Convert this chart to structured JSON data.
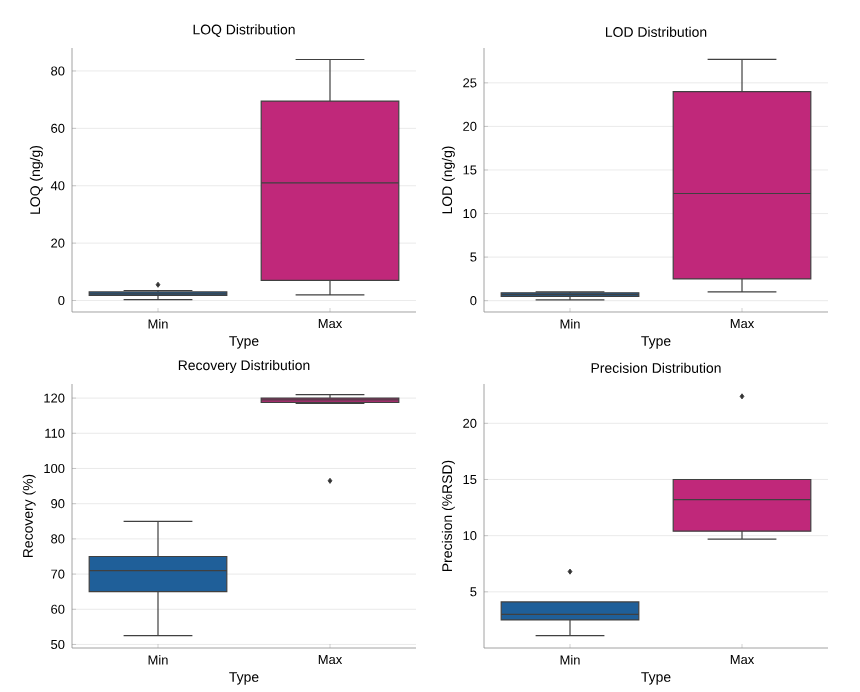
{
  "chart_data": [
    {
      "type": "box",
      "title": "LOQ Distribution",
      "xlabel": "Type",
      "ylabel": "LOQ (ng/g)",
      "categories": [
        "Min",
        "Max"
      ],
      "colors": [
        "#1f5f99",
        "#c0287a"
      ],
      "grid": "y",
      "ylim": [
        -4,
        88
      ],
      "yticks": [
        0,
        20,
        40,
        60,
        80
      ],
      "boxes": [
        {
          "low": 0.3,
          "q1": 1.8,
          "median": 2.3,
          "q3": 3,
          "high": 3.5,
          "outliers": [
            5.5
          ]
        },
        {
          "low": 2,
          "q1": 7,
          "median": 41,
          "q3": 69.5,
          "high": 84
        }
      ]
    },
    {
      "type": "box",
      "title": "LOD Distribution",
      "xlabel": "Type",
      "ylabel": "LOD (ng/g)",
      "categories": [
        "Min",
        "Max"
      ],
      "colors": [
        "#1f5f99",
        "#c0287a"
      ],
      "grid": "y",
      "ylim": [
        -1.3,
        29
      ],
      "yticks": [
        0,
        5,
        10,
        15,
        20,
        25
      ],
      "boxes": [
        {
          "low": 0.1,
          "q1": 0.5,
          "median": 0.7,
          "q3": 0.9,
          "high": 1.0
        },
        {
          "low": 1,
          "q1": 2.5,
          "median": 12.3,
          "q3": 24,
          "high": 27.7
        }
      ]
    },
    {
      "type": "box",
      "title": "Recovery Distribution",
      "xlabel": "Type",
      "ylabel": "Recovery (%)",
      "categories": [
        "Min",
        "Max"
      ],
      "colors": [
        "#1f5f99",
        "#c0287a"
      ],
      "grid": "y",
      "ylim": [
        49,
        124
      ],
      "yticks": [
        50,
        60,
        70,
        80,
        90,
        100,
        110,
        120
      ],
      "boxes": [
        {
          "low": 52.5,
          "q1": 65,
          "median": 71,
          "q3": 75,
          "high": 85
        },
        {
          "low": 118.5,
          "q1": 118.8,
          "median": 119.5,
          "q3": 120,
          "high": 121,
          "outliers": [
            96.5
          ]
        }
      ]
    },
    {
      "type": "box",
      "title": "Precision Distribution",
      "xlabel": "Type",
      "ylabel": "Precision (%RSD)",
      "categories": [
        "Min",
        "Max"
      ],
      "colors": [
        "#1f5f99",
        "#c0287a"
      ],
      "grid": "y",
      "ylim": [
        0,
        23.5
      ],
      "yticks": [
        5,
        10,
        15,
        20
      ],
      "boxes": [
        {
          "low": 1.1,
          "q1": 2.5,
          "median": 3,
          "q3": 4.1,
          "high": 4.1,
          "outliers": [
            6.8
          ]
        },
        {
          "low": 9.7,
          "q1": 10.4,
          "median": 13.2,
          "q3": 15,
          "high": 15,
          "outliers": [
            22.4
          ]
        }
      ]
    }
  ]
}
